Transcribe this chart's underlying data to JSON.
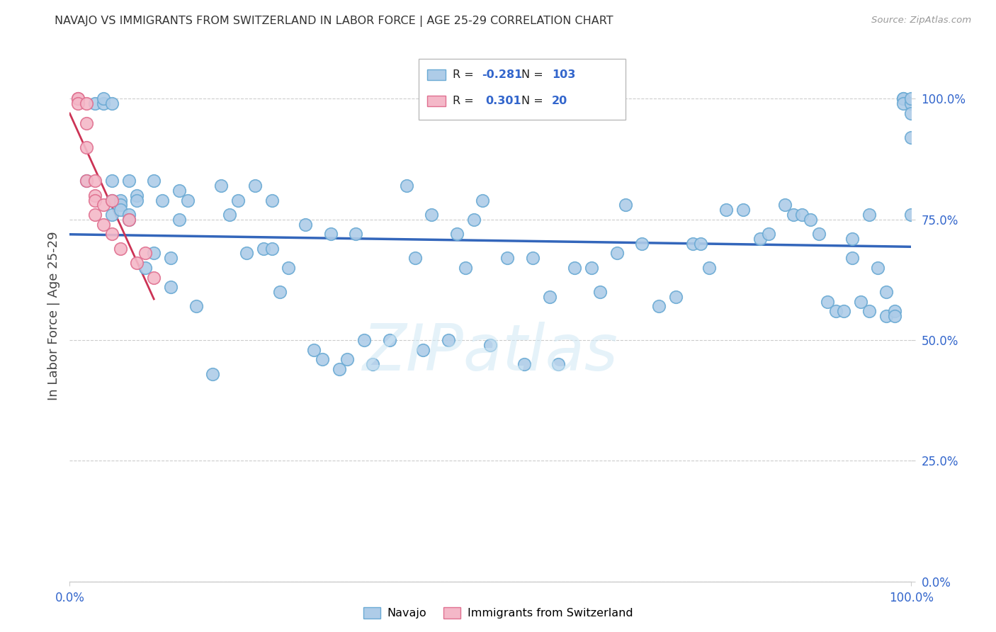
{
  "title": "NAVAJO VS IMMIGRANTS FROM SWITZERLAND IN LABOR FORCE | AGE 25-29 CORRELATION CHART",
  "source": "Source: ZipAtlas.com",
  "ylabel": "In Labor Force | Age 25-29",
  "navajo_R": -0.281,
  "navajo_N": 103,
  "swiss_R": 0.301,
  "swiss_N": 20,
  "navajo_color": "#aecce8",
  "navajo_edge_color": "#6aaad4",
  "swiss_color": "#f4b8c8",
  "swiss_edge_color": "#e07090",
  "navajo_line_color": "#3366bb",
  "swiss_line_color": "#cc3355",
  "watermark_color": "#d0e8f5",
  "tick_color": "#3366cc",
  "grid_color": "#cccccc",
  "title_color": "#333333",
  "source_color": "#999999",
  "ylabel_color": "#444444",
  "legend_navajo": "Navajo",
  "legend_swiss": "Immigrants from Switzerland",
  "navajo_x": [
    2,
    3,
    4,
    4,
    5,
    5,
    5,
    5,
    6,
    6,
    6,
    7,
    7,
    7,
    8,
    8,
    9,
    10,
    10,
    11,
    12,
    12,
    13,
    13,
    14,
    15,
    17,
    18,
    19,
    20,
    21,
    22,
    23,
    24,
    24,
    25,
    26,
    28,
    29,
    30,
    31,
    32,
    33,
    34,
    35,
    36,
    38,
    40,
    41,
    42,
    43,
    45,
    46,
    47,
    48,
    49,
    50,
    52,
    54,
    55,
    57,
    58,
    60,
    62,
    63,
    65,
    66,
    68,
    70,
    72,
    74,
    75,
    76,
    78,
    80,
    82,
    83,
    85,
    86,
    87,
    88,
    89,
    90,
    91,
    92,
    93,
    93,
    94,
    95,
    95,
    96,
    97,
    97,
    98,
    98,
    99,
    99,
    99,
    100,
    100,
    100,
    100,
    100
  ],
  "navajo_y": [
    83,
    99,
    99,
    100,
    99,
    83,
    79,
    76,
    79,
    78,
    77,
    76,
    75,
    83,
    80,
    79,
    65,
    68,
    83,
    79,
    61,
    67,
    81,
    75,
    79,
    57,
    43,
    82,
    76,
    79,
    68,
    82,
    69,
    69,
    79,
    60,
    65,
    74,
    48,
    46,
    72,
    44,
    46,
    72,
    50,
    45,
    50,
    82,
    67,
    48,
    76,
    50,
    72,
    65,
    75,
    79,
    49,
    67,
    45,
    67,
    59,
    45,
    65,
    65,
    60,
    68,
    78,
    70,
    57,
    59,
    70,
    70,
    65,
    77,
    77,
    71,
    72,
    78,
    76,
    76,
    75,
    72,
    58,
    56,
    56,
    71,
    67,
    58,
    56,
    76,
    65,
    55,
    60,
    56,
    55,
    100,
    100,
    99,
    99,
    97,
    92,
    76,
    100
  ],
  "swiss_x": [
    1,
    1,
    1,
    2,
    2,
    2,
    2,
    3,
    3,
    3,
    3,
    4,
    4,
    5,
    5,
    6,
    7,
    8,
    9,
    10
  ],
  "swiss_y": [
    100,
    100,
    99,
    99,
    95,
    90,
    83,
    83,
    80,
    79,
    76,
    78,
    74,
    79,
    72,
    69,
    75,
    66,
    68,
    63
  ],
  "xlim": [
    0,
    100
  ],
  "ylim": [
    0,
    110
  ],
  "yticks": [
    0,
    25,
    50,
    75,
    100
  ],
  "ytick_labels": [
    "0.0%",
    "25.0%",
    "50.0%",
    "75.0%",
    "100.0%"
  ],
  "xticks": [
    0,
    100
  ],
  "xtick_labels": [
    "0.0%",
    "100.0%"
  ]
}
